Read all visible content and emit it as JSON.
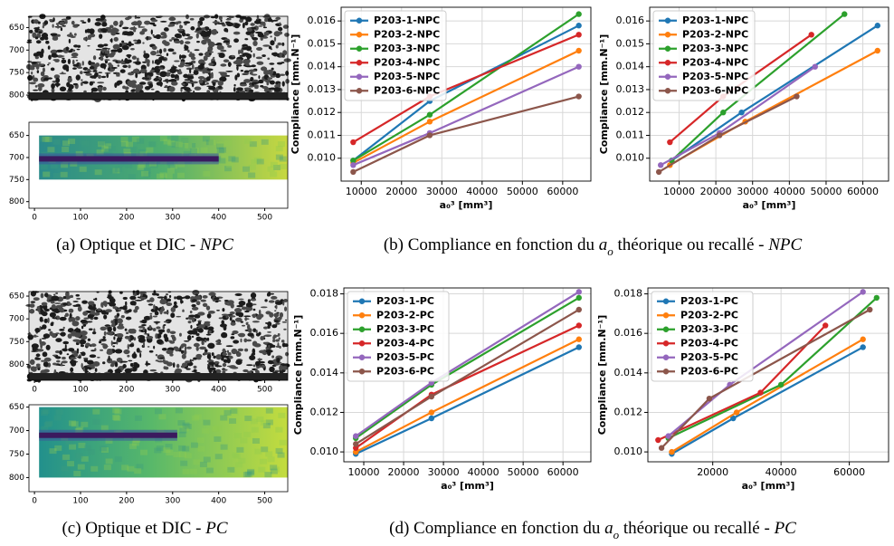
{
  "chart_data": [
    {
      "type": "line",
      "xlabel": "a₀³ [mm³]",
      "ylabel": "Compliance [mm.N⁻¹]",
      "grid": true,
      "legend": "upper left",
      "xlim": [
        5000,
        67000
      ],
      "ylim": [
        0.009,
        0.0166
      ],
      "xticks": [
        10000,
        20000,
        30000,
        40000,
        50000,
        60000
      ],
      "yticks": [
        {
          "value": 0.01,
          "label": "0.010"
        },
        0.011,
        0.012,
        0.013,
        0.014,
        0.015,
        0.016
      ],
      "x": [
        8000,
        27000,
        64000
      ],
      "series": [
        {
          "name": "P203-1-NPC",
          "color": "#1f77b4",
          "values": [
            0.0099,
            0.0125,
            0.0158
          ]
        },
        {
          "name": "P203-2-NPC",
          "color": "#ff7f0e",
          "values": [
            0.0098,
            0.0116,
            0.0147
          ]
        },
        {
          "name": "P203-3-NPC",
          "color": "#2ca02c",
          "values": [
            0.0099,
            0.0119,
            0.0163
          ]
        },
        {
          "name": "P203-4-NPC",
          "color": "#d62728",
          "values": [
            0.0107,
            0.0127,
            0.0154
          ]
        },
        {
          "name": "P203-5-NPC",
          "color": "#9467bd",
          "values": [
            0.0097,
            0.0111,
            0.014
          ]
        },
        {
          "name": "P203-6-NPC",
          "color": "#8c564b",
          "values": [
            0.0094,
            0.011,
            0.0127
          ]
        }
      ]
    },
    {
      "type": "line",
      "xlabel": "a₀³ [mm³]",
      "ylabel": "Compliance [mm.N⁻¹]",
      "grid": true,
      "legend": "upper left",
      "xlim": [
        2000,
        67000
      ],
      "ylim": [
        0.009,
        0.0166
      ],
      "xticks": [
        10000,
        20000,
        30000,
        40000,
        50000,
        60000
      ],
      "yticks": [
        {
          "value": 0.01,
          "label": "0.010"
        },
        0.011,
        0.012,
        0.013,
        0.014,
        0.015,
        0.016
      ],
      "series": [
        {
          "name": "P203-1-NPC",
          "color": "#1f77b4",
          "x": [
            8000,
            27000,
            64000
          ],
          "values": [
            0.0099,
            0.012,
            0.0158
          ]
        },
        {
          "name": "P203-2-NPC",
          "color": "#ff7f0e",
          "x": [
            7500,
            28000,
            64000
          ],
          "values": [
            0.0097,
            0.0116,
            0.0147
          ]
        },
        {
          "name": "P203-3-NPC",
          "color": "#2ca02c",
          "x": [
            8000,
            22000,
            55000
          ],
          "values": [
            0.0099,
            0.012,
            0.0163
          ]
        },
        {
          "name": "P203-4-NPC",
          "color": "#d62728",
          "x": [
            7500,
            22000,
            46000
          ],
          "values": [
            0.0107,
            0.0127,
            0.0154
          ]
        },
        {
          "name": "P203-5-NPC",
          "color": "#9467bd",
          "x": [
            5000,
            21000,
            47000
          ],
          "values": [
            0.0097,
            0.0111,
            0.014
          ]
        },
        {
          "name": "P203-6-NPC",
          "color": "#8c564b",
          "x": [
            4500,
            21000,
            42000
          ],
          "values": [
            0.0094,
            0.011,
            0.0127
          ]
        }
      ]
    },
    {
      "type": "line",
      "xlabel": "a₀³ [mm³]",
      "ylabel": "Compliance [mm.N⁻¹]",
      "grid": true,
      "legend": "upper left",
      "xlim": [
        5000,
        67000
      ],
      "ylim": [
        0.0095,
        0.0183
      ],
      "xticks": [
        10000,
        20000,
        30000,
        40000,
        50000,
        60000
      ],
      "yticks": [
        {
          "value": 0.01,
          "label": "0.010"
        },
        0.012,
        0.014,
        0.016,
        0.018
      ],
      "x": [
        8000,
        27000,
        64000
      ],
      "series": [
        {
          "name": "P203-1-PC",
          "color": "#1f77b4",
          "values": [
            0.0099,
            0.0117,
            0.0153
          ]
        },
        {
          "name": "P203-2-PC",
          "color": "#ff7f0e",
          "values": [
            0.01,
            0.012,
            0.0157
          ]
        },
        {
          "name": "P203-3-PC",
          "color": "#2ca02c",
          "values": [
            0.0107,
            0.0134,
            0.0178
          ]
        },
        {
          "name": "P203-4-PC",
          "color": "#d62728",
          "values": [
            0.0102,
            0.0129,
            0.0164
          ]
        },
        {
          "name": "P203-5-PC",
          "color": "#9467bd",
          "values": [
            0.0108,
            0.0135,
            0.0181
          ]
        },
        {
          "name": "P203-6-PC",
          "color": "#8c564b",
          "values": [
            0.0104,
            0.0128,
            0.0172
          ]
        }
      ]
    },
    {
      "type": "line",
      "xlabel": "a₀³ [mm³]",
      "ylabel": "Compliance [mm.N⁻¹]",
      "grid": true,
      "legend": "upper left",
      "xlim": [
        1000,
        71500
      ],
      "ylim": [
        0.0095,
        0.0183
      ],
      "xticks": [
        20000,
        40000,
        60000
      ],
      "yticks": [
        {
          "value": 0.01,
          "label": "0.010"
        },
        0.012,
        0.014,
        0.016,
        0.018
      ],
      "series": [
        {
          "name": "P203-1-PC",
          "color": "#1f77b4",
          "x": [
            8000,
            26000,
            64000
          ],
          "values": [
            0.0099,
            0.0117,
            0.0153
          ]
        },
        {
          "name": "P203-2-PC",
          "color": "#ff7f0e",
          "x": [
            8000,
            27000,
            64000
          ],
          "values": [
            0.01,
            0.012,
            0.0157
          ]
        },
        {
          "name": "P203-3-PC",
          "color": "#2ca02c",
          "x": [
            7000,
            40000,
            68000
          ],
          "values": [
            0.0107,
            0.0134,
            0.0178
          ]
        },
        {
          "name": "P203-4-PC",
          "color": "#d62728",
          "x": [
            4000,
            34000,
            53000
          ],
          "values": [
            0.0106,
            0.013,
            0.0164
          ]
        },
        {
          "name": "P203-5-PC",
          "color": "#9467bd",
          "x": [
            7000,
            25000,
            64000
          ],
          "values": [
            0.0108,
            0.0134,
            0.0181
          ]
        },
        {
          "name": "P203-6-PC",
          "color": "#8c564b",
          "x": [
            5000,
            19000,
            66000
          ],
          "values": [
            0.0102,
            0.0127,
            0.0172
          ]
        }
      ]
    }
  ],
  "images": [
    {
      "kind": "optical",
      "xlim": [
        -12,
        550
      ],
      "ylim": [
        625,
        810
      ],
      "yticks": [
        650,
        700,
        750,
        800
      ]
    },
    {
      "kind": "dic",
      "xlim": [
        -12,
        550
      ],
      "ylim": [
        620,
        815
      ],
      "yticks": [
        650,
        700,
        750,
        800
      ],
      "xticks": [
        0,
        100,
        200,
        300,
        400,
        500
      ]
    },
    {
      "kind": "optical",
      "xlim": [
        -12,
        550
      ],
      "ylim": [
        640,
        835
      ],
      "yticks": [
        650,
        700,
        750,
        800
      ],
      "xticks": [
        0,
        100,
        200,
        300,
        400,
        500
      ]
    },
    {
      "kind": "dic",
      "xlim": [
        -12,
        550
      ],
      "ylim": [
        645,
        830
      ],
      "yticks": [
        650,
        700,
        750,
        800
      ],
      "xticks": [
        0,
        100,
        200,
        300,
        400,
        500
      ]
    }
  ],
  "captions": [
    {
      "parts": [
        "(a) Optique et DIC - ",
        "NPC"
      ],
      "italic": [
        1
      ],
      "sub": []
    },
    {
      "parts": [
        "(b) Compliance en fonction du ",
        "a",
        "o",
        " théorique ou recallé - ",
        "NPC"
      ],
      "italic": [
        1,
        2,
        4
      ],
      "sub": [
        2
      ]
    },
    {
      "parts": [
        "(c) Optique et DIC - ",
        "PC"
      ],
      "italic": [
        1
      ],
      "sub": []
    },
    {
      "parts": [
        "(d) Compliance en fonction du ",
        "a",
        "o",
        " théorique ou recallé - ",
        "PC"
      ],
      "italic": [
        1,
        2,
        4
      ],
      "sub": [
        2
      ]
    }
  ]
}
